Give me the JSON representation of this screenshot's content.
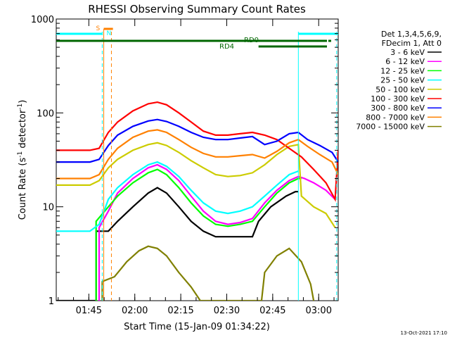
{
  "chart_data": {
    "type": "line",
    "title": "RHESSI Observing Summary Count Rates",
    "xlabel": "Start Time (15-Jan-09 01:34:22)",
    "ylabel_main": "Count Rate (s",
    "ylabel_sup1": "-1",
    "ylabel_mid": " detector",
    "ylabel_sup2": "-1",
    "ylabel_end": ")",
    "y_scale": "log",
    "ylim": [
      1,
      1000
    ],
    "xlim_minutes": [
      0,
      92
    ],
    "y_ticks": [
      {
        "value": 1,
        "label": "1"
      },
      {
        "value": 10,
        "label": "10"
      },
      {
        "value": 100,
        "label": "100"
      },
      {
        "value": 1000,
        "label": "1000"
      }
    ],
    "x_ticks": [
      {
        "minutes": 10.63,
        "label": "01:45"
      },
      {
        "minutes": 25.63,
        "label": "02:00"
      },
      {
        "minutes": 40.63,
        "label": "02:15"
      },
      {
        "minutes": 55.63,
        "label": "02:30"
      },
      {
        "minutes": 70.63,
        "label": "02:45"
      },
      {
        "minutes": 85.63,
        "label": "03:00"
      }
    ],
    "legend_header_1": "Det 1,3,4,5,6,9,",
    "legend_header_2": "FDecim 1, Att 0",
    "legend_position": "right",
    "series": [
      {
        "name": "3 - 6 keV",
        "color": "#000000",
        "points": [
          [
            0,
            1
          ],
          [
            13,
            1
          ],
          [
            13,
            5.5
          ],
          [
            17,
            5.5
          ],
          [
            20,
            7
          ],
          [
            25,
            10
          ],
          [
            30,
            14
          ],
          [
            33,
            16
          ],
          [
            36,
            14
          ],
          [
            40,
            10
          ],
          [
            44,
            7
          ],
          [
            48,
            5.5
          ],
          [
            52,
            4.8
          ],
          [
            56,
            4.8
          ],
          [
            60,
            4.8
          ],
          [
            64,
            4.8
          ],
          [
            66,
            7
          ],
          [
            70,
            10
          ],
          [
            75,
            13
          ],
          [
            78,
            14.5
          ],
          [
            79,
            14.5
          ]
        ]
      },
      {
        "name": "6 - 12 keV",
        "color": "#ff00ff",
        "points": [
          [
            14,
            1
          ],
          [
            14,
            6
          ],
          [
            17,
            9
          ],
          [
            20,
            14
          ],
          [
            25,
            20
          ],
          [
            30,
            26
          ],
          [
            33,
            28
          ],
          [
            36,
            25
          ],
          [
            40,
            19
          ],
          [
            44,
            13
          ],
          [
            48,
            9
          ],
          [
            52,
            7
          ],
          [
            56,
            6.5
          ],
          [
            60,
            6.8
          ],
          [
            64,
            7.5
          ],
          [
            68,
            11
          ],
          [
            72,
            15
          ],
          [
            76,
            19
          ],
          [
            79,
            21
          ],
          [
            81,
            20
          ],
          [
            84,
            18
          ],
          [
            88,
            15
          ],
          [
            91,
            12
          ]
        ]
      },
      {
        "name": "12 - 25 keV",
        "color": "#00ff00",
        "points": [
          [
            13,
            1
          ],
          [
            13,
            7
          ],
          [
            17,
            10
          ],
          [
            20,
            13
          ],
          [
            25,
            18
          ],
          [
            30,
            23
          ],
          [
            33,
            25
          ],
          [
            36,
            22
          ],
          [
            40,
            16
          ],
          [
            44,
            11
          ],
          [
            48,
            8
          ],
          [
            52,
            6.5
          ],
          [
            56,
            6.2
          ],
          [
            60,
            6.5
          ],
          [
            64,
            7
          ],
          [
            68,
            10
          ],
          [
            72,
            14
          ],
          [
            76,
            18
          ],
          [
            79,
            20
          ],
          [
            80,
            20
          ]
        ]
      },
      {
        "name": "25 - 50 keV",
        "color": "#00ffff",
        "points": [
          [
            0,
            5.5
          ],
          [
            11,
            5.5
          ],
          [
            14,
            6.5
          ],
          [
            17,
            12
          ],
          [
            20,
            16
          ],
          [
            25,
            22
          ],
          [
            30,
            28
          ],
          [
            33,
            30
          ],
          [
            36,
            27
          ],
          [
            40,
            21
          ],
          [
            44,
            15
          ],
          [
            48,
            11
          ],
          [
            52,
            9
          ],
          [
            56,
            8.5
          ],
          [
            60,
            9
          ],
          [
            64,
            10
          ],
          [
            68,
            13
          ],
          [
            72,
            17
          ],
          [
            76,
            22
          ],
          [
            79,
            24
          ]
        ]
      },
      {
        "name": "50 - 100 keV",
        "color": "#cccc00",
        "points": [
          [
            0,
            17
          ],
          [
            11,
            17
          ],
          [
            14,
            19
          ],
          [
            17,
            26
          ],
          [
            20,
            32
          ],
          [
            25,
            40
          ],
          [
            30,
            46
          ],
          [
            33,
            48
          ],
          [
            36,
            45
          ],
          [
            40,
            38
          ],
          [
            44,
            31
          ],
          [
            48,
            26
          ],
          [
            52,
            22
          ],
          [
            56,
            21
          ],
          [
            60,
            21.5
          ],
          [
            64,
            23
          ],
          [
            68,
            28
          ],
          [
            72,
            36
          ],
          [
            76,
            44
          ],
          [
            79,
            46
          ],
          [
            80,
            13
          ],
          [
            84,
            10
          ],
          [
            88,
            8.5
          ],
          [
            91,
            6
          ]
        ]
      },
      {
        "name": "100 - 300 keV",
        "color": "#ff0000",
        "points": [
          [
            0,
            40
          ],
          [
            11,
            40
          ],
          [
            14,
            42
          ],
          [
            17,
            62
          ],
          [
            20,
            80
          ],
          [
            25,
            105
          ],
          [
            30,
            125
          ],
          [
            33,
            130
          ],
          [
            36,
            122
          ],
          [
            40,
            100
          ],
          [
            44,
            80
          ],
          [
            48,
            64
          ],
          [
            52,
            58
          ],
          [
            56,
            58
          ],
          [
            60,
            60
          ],
          [
            64,
            62
          ],
          [
            68,
            58
          ],
          [
            72,
            52
          ],
          [
            76,
            42
          ],
          [
            80,
            34
          ],
          [
            84,
            25
          ],
          [
            88,
            18
          ],
          [
            91,
            12
          ],
          [
            92,
            40
          ]
        ]
      },
      {
        "name": "300 - 800 keV",
        "color": "#0000ff",
        "points": [
          [
            0,
            30
          ],
          [
            11,
            30
          ],
          [
            14,
            32
          ],
          [
            17,
            45
          ],
          [
            20,
            58
          ],
          [
            25,
            72
          ],
          [
            30,
            82
          ],
          [
            33,
            85
          ],
          [
            36,
            81
          ],
          [
            40,
            72
          ],
          [
            44,
            62
          ],
          [
            48,
            55
          ],
          [
            52,
            52
          ],
          [
            56,
            52
          ],
          [
            60,
            54
          ],
          [
            64,
            56
          ],
          [
            68,
            46
          ],
          [
            72,
            50
          ],
          [
            76,
            60
          ],
          [
            79,
            62
          ],
          [
            82,
            52
          ],
          [
            86,
            45
          ],
          [
            90,
            38
          ],
          [
            92,
            30
          ]
        ]
      },
      {
        "name": "800 - 7000 keV",
        "color": "#ff8000",
        "points": [
          [
            0,
            20
          ],
          [
            11,
            20
          ],
          [
            14,
            22
          ],
          [
            17,
            32
          ],
          [
            20,
            42
          ],
          [
            25,
            55
          ],
          [
            30,
            64
          ],
          [
            33,
            66
          ],
          [
            36,
            62
          ],
          [
            40,
            52
          ],
          [
            44,
            43
          ],
          [
            48,
            37
          ],
          [
            52,
            34
          ],
          [
            56,
            34
          ],
          [
            60,
            35
          ],
          [
            64,
            36
          ],
          [
            68,
            33
          ],
          [
            72,
            39
          ],
          [
            76,
            48
          ],
          [
            79,
            52
          ],
          [
            82,
            44
          ],
          [
            86,
            36
          ],
          [
            90,
            30
          ],
          [
            92,
            22
          ]
        ]
      },
      {
        "name": "7000 - 15000 keV",
        "color": "#808000",
        "points": [
          [
            15,
            1
          ],
          [
            15,
            1.6
          ],
          [
            19,
            1.8
          ],
          [
            23,
            2.6
          ],
          [
            27,
            3.4
          ],
          [
            30,
            3.8
          ],
          [
            33,
            3.6
          ],
          [
            36,
            3
          ],
          [
            40,
            2
          ],
          [
            44,
            1.4
          ],
          [
            47,
            1
          ],
          [
            67,
            1
          ],
          [
            68,
            2
          ],
          [
            72,
            3
          ],
          [
            76,
            3.6
          ],
          [
            80,
            2.6
          ],
          [
            83,
            1.5
          ],
          [
            84,
            1
          ]
        ]
      }
    ],
    "attenuator_states": [
      {
        "label": "RD0",
        "color": "#006600",
        "y_value": 600,
        "x_start": 0,
        "x_end": 92
      },
      {
        "label": "RD4",
        "color": "#006600",
        "y_value": 500,
        "x_start": 66,
        "x_end": 92
      }
    ],
    "flags": [
      {
        "label": "S",
        "color": "#ff8000"
      },
      {
        "label": "N",
        "color": "#00ffff"
      }
    ],
    "vertical_markers": [
      {
        "minutes": 15,
        "color": "#00ffff",
        "style": "dashed"
      },
      {
        "minutes": 18,
        "color": "#ff8000",
        "style": "dashed"
      },
      {
        "minutes": 79,
        "color": "#00ffff",
        "style": "solid"
      },
      {
        "minutes": 91.5,
        "color": "#00ffff",
        "style": "dashed"
      }
    ]
  },
  "footer": {
    "timestamp": "13-Oct-2021 17:10"
  }
}
